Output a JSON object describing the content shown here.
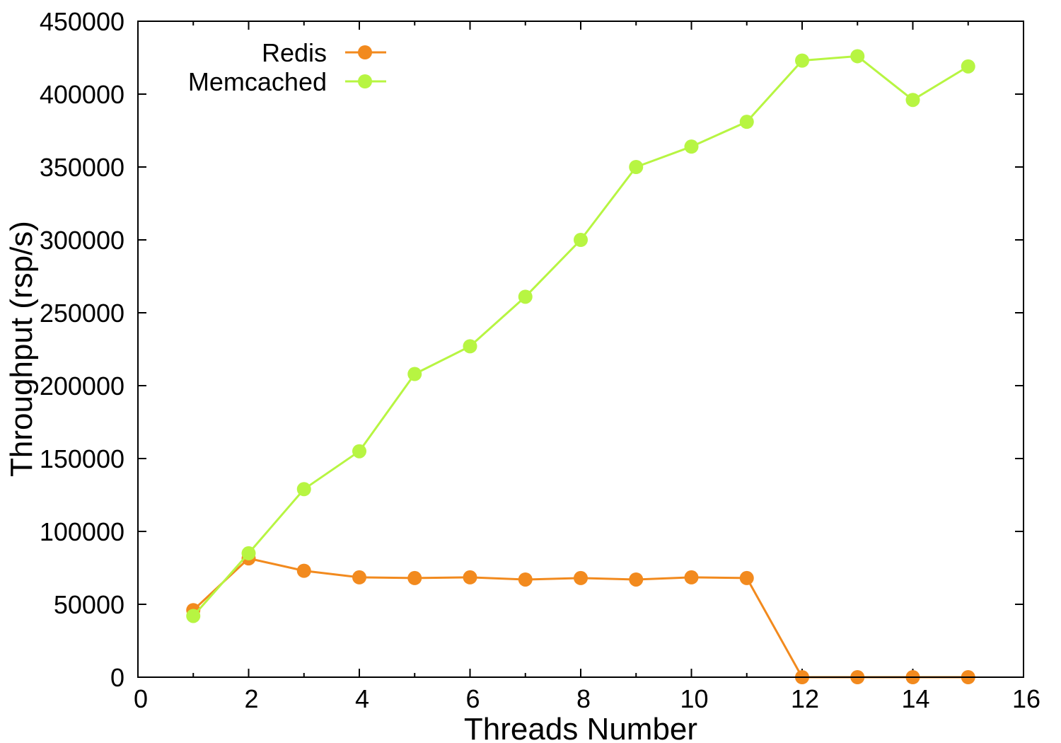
{
  "chart_data": {
    "type": "line",
    "xlabel": "Threads Number",
    "ylabel": "Throughput (rsp/s)",
    "xlim": [
      0,
      16
    ],
    "ylim": [
      0,
      450000
    ],
    "xticks": [
      0,
      2,
      4,
      6,
      8,
      10,
      12,
      14,
      16
    ],
    "yticks": [
      0,
      50000,
      100000,
      150000,
      200000,
      250000,
      300000,
      350000,
      400000,
      450000
    ],
    "x_minor_ticks": [
      1,
      3,
      5,
      7,
      9,
      11,
      13,
      15
    ],
    "grid": false,
    "legend_position": "top-left",
    "x": [
      1,
      2,
      3,
      4,
      5,
      6,
      7,
      8,
      9,
      10,
      11,
      12,
      13,
      14,
      15
    ],
    "series": [
      {
        "name": "Redis",
        "color": "#f28a1e",
        "marker": "circle",
        "values": [
          46000,
          81500,
          73000,
          68500,
          68000,
          68500,
          67000,
          68000,
          67000,
          68500,
          68000,
          0,
          0,
          0,
          0
        ]
      },
      {
        "name": "Memcached",
        "color": "#b7f542",
        "marker": "circle",
        "values": [
          42000,
          85000,
          129000,
          155000,
          208000,
          227000,
          261000,
          300000,
          350000,
          364000,
          381000,
          423000,
          426000,
          396000,
          419000
        ]
      }
    ]
  }
}
